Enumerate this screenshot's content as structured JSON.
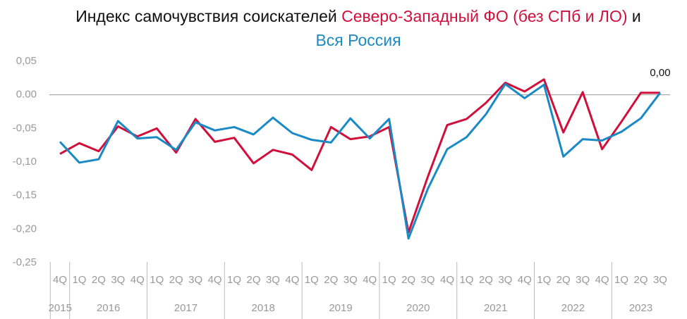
{
  "chart_data": {
    "type": "line",
    "title": "Индекс самочувствия соискателей",
    "title_joiner": "и",
    "categories": [
      "4Q",
      "1Q",
      "2Q",
      "3Q",
      "4Q",
      "1Q",
      "2Q",
      "3Q",
      "4Q",
      "1Q",
      "2Q",
      "3Q",
      "4Q",
      "1Q",
      "2Q",
      "3Q",
      "4Q",
      "1Q",
      "2Q",
      "3Q",
      "4Q",
      "1Q",
      "2Q",
      "3Q",
      "4Q",
      "1Q",
      "2Q",
      "3Q",
      "4Q",
      "1Q",
      "2Q",
      "3Q"
    ],
    "years": [
      "2015",
      "2016",
      "2017",
      "2018",
      "2019",
      "2020",
      "2021",
      "2022",
      "2023"
    ],
    "series": [
      {
        "name": "Северо-Западный ФО (без СПб и ЛО)",
        "color": "#d0103a",
        "values": [
          -0.088,
          -0.072,
          -0.084,
          -0.047,
          -0.062,
          -0.05,
          -0.086,
          -0.036,
          -0.07,
          -0.064,
          -0.102,
          -0.082,
          -0.089,
          -0.112,
          -0.048,
          -0.066,
          -0.062,
          -0.048,
          -0.205,
          -0.122,
          -0.045,
          -0.036,
          -0.012,
          0.018,
          0.005,
          0.023,
          -0.056,
          0.004,
          -0.081,
          -0.04,
          0.003,
          0.003
        ]
      },
      {
        "name": "Вся Россия",
        "color": "#1a8ac6",
        "values": [
          -0.07,
          -0.101,
          -0.096,
          -0.039,
          -0.065,
          -0.063,
          -0.082,
          -0.041,
          -0.053,
          -0.048,
          -0.059,
          -0.034,
          -0.057,
          -0.067,
          -0.071,
          -0.035,
          -0.065,
          -0.036,
          -0.214,
          -0.14,
          -0.081,
          -0.063,
          -0.029,
          0.016,
          -0.005,
          0.015,
          -0.092,
          -0.066,
          -0.068,
          -0.055,
          -0.035,
          0.003
        ],
        "value_labels": [
          null,
          null,
          null,
          null,
          null,
          null,
          null,
          null,
          null,
          null,
          null,
          null,
          null,
          null,
          null,
          null,
          null,
          null,
          null,
          null,
          null,
          null,
          null,
          null,
          null,
          null,
          null,
          null,
          null,
          null,
          null,
          "0,00"
        ]
      }
    ],
    "ylim": [
      -0.25,
      0.05
    ],
    "yticks": [
      {
        "value": 0.05,
        "label": "0,05"
      },
      {
        "value": 0,
        "label": "0.00"
      },
      {
        "value": -0.05,
        "label": "-0,05"
      },
      {
        "value": -0.1,
        "label": "-0,10"
      },
      {
        "value": -0.15,
        "label": "-0,15"
      },
      {
        "value": -0.2,
        "label": "-0,20"
      },
      {
        "value": -0.25,
        "label": "-0,25"
      }
    ],
    "zero_line": true
  }
}
